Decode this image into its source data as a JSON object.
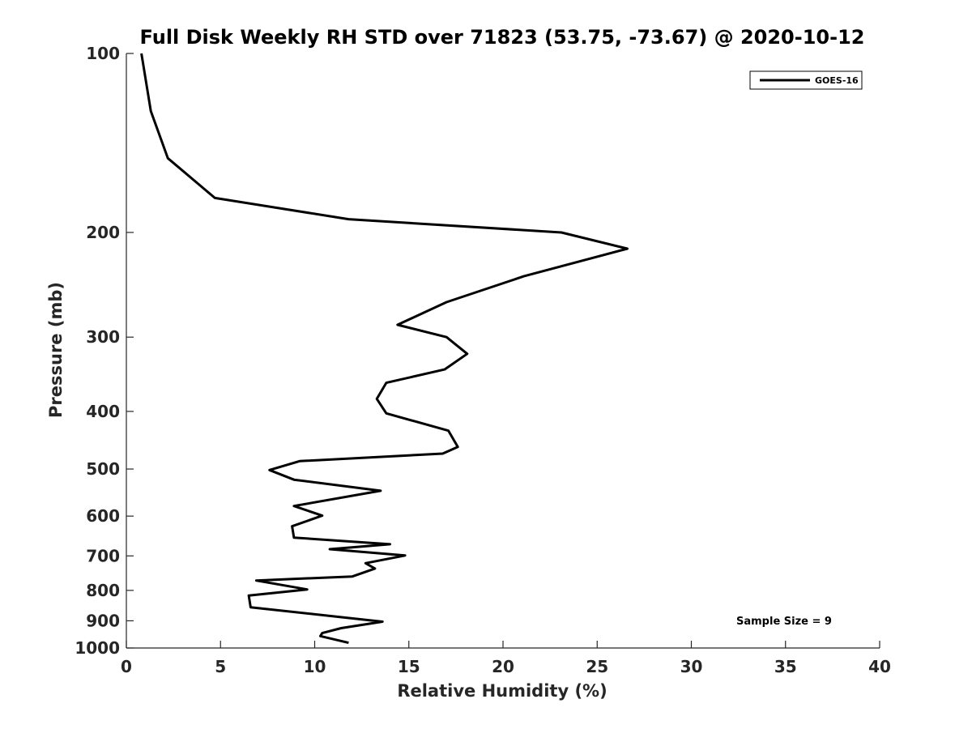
{
  "chart_data": {
    "type": "line",
    "title": "Full Disk Weekly RH STD over 71823 (53.75, -73.67) @ 2020-10-12",
    "xlabel": "Relative Humidity (%)",
    "ylabel": "Pressure (mb)",
    "xlim": [
      0,
      40
    ],
    "ylim": [
      100,
      1000
    ],
    "yscale": "log",
    "yreversed": true,
    "grid": false,
    "x_ticks": [
      0,
      5,
      10,
      15,
      20,
      25,
      30,
      35,
      40
    ],
    "y_ticks": [
      100,
      200,
      300,
      400,
      500,
      600,
      700,
      800,
      900,
      1000
    ],
    "legend": {
      "position": "top-right",
      "entries": [
        "GOES-16"
      ]
    },
    "annotation": "Sample Size = 9",
    "series": [
      {
        "name": "GOES-16",
        "color": "#000000",
        "points": [
          [
            0.8,
            100
          ],
          [
            1.3,
            125
          ],
          [
            2.2,
            150
          ],
          [
            4.7,
            175
          ],
          [
            11.8,
            190
          ],
          [
            23.1,
            200
          ],
          [
            26.6,
            213
          ],
          [
            21.1,
            237
          ],
          [
            17.0,
            262
          ],
          [
            14.4,
            286
          ],
          [
            17.0,
            300
          ],
          [
            18.1,
            320
          ],
          [
            16.9,
            340
          ],
          [
            13.8,
            358
          ],
          [
            13.3,
            381
          ],
          [
            13.8,
            403
          ],
          [
            17.1,
            431
          ],
          [
            17.6,
            459
          ],
          [
            16.8,
            471
          ],
          [
            9.2,
            485
          ],
          [
            7.6,
            502
          ],
          [
            8.9,
            521
          ],
          [
            13.5,
            544
          ],
          [
            8.9,
            577
          ],
          [
            10.4,
            599
          ],
          [
            8.8,
            624
          ],
          [
            8.9,
            652
          ],
          [
            14.0,
            669
          ],
          [
            10.8,
            682
          ],
          [
            14.8,
            699
          ],
          [
            12.7,
            720
          ],
          [
            13.2,
            735
          ],
          [
            12.0,
            758
          ],
          [
            6.9,
            770
          ],
          [
            9.6,
            797
          ],
          [
            6.5,
            816
          ],
          [
            6.6,
            854
          ],
          [
            13.6,
            903
          ],
          [
            11.4,
            926
          ],
          [
            10.4,
            944
          ],
          [
            10.3,
            955
          ],
          [
            11.8,
            980
          ]
        ]
      }
    ]
  }
}
